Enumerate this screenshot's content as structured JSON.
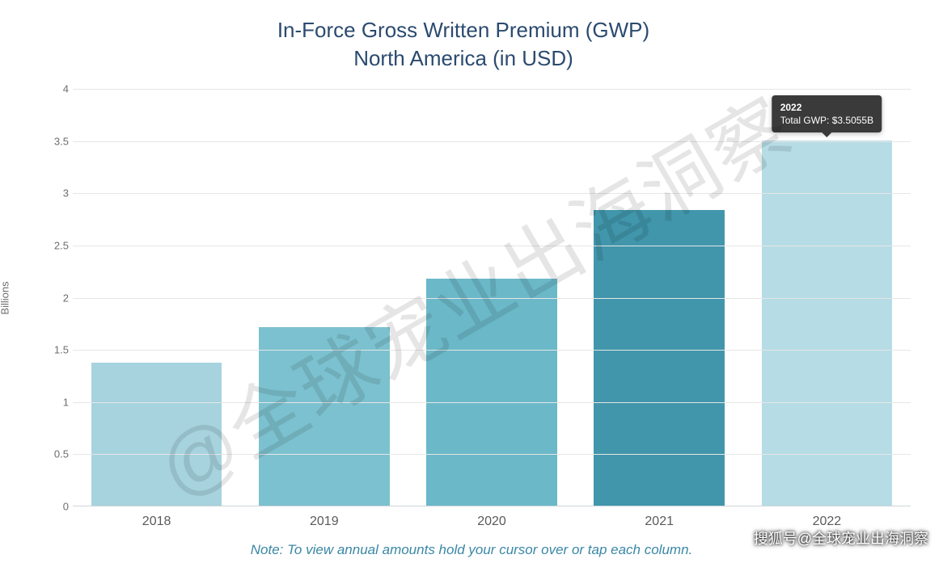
{
  "chart": {
    "type": "bar",
    "title_line1": "In-Force Gross Written Premium (GWP)",
    "title_line2": "North America (in USD)",
    "title_color": "#2b4a6f",
    "title_fontsize": 26,
    "y_axis_title": "Billions",
    "y_axis_title_color": "#6d6d6d",
    "ylim_min": 0,
    "ylim_max": 4,
    "ytick_step": 0.5,
    "yticks": [
      "0",
      "0.5",
      "1",
      "1.5",
      "2",
      "2.5",
      "3",
      "3.5",
      "4"
    ],
    "gridline_color": "#e6e6e6",
    "axis_line_color": "#cfd5da",
    "background_color": "#ffffff",
    "label_color": "#5a5a5a",
    "label_fontsize": 16,
    "bar_width_ratio": 0.78,
    "categories": [
      "2018",
      "2019",
      "2020",
      "2021",
      "2022"
    ],
    "values": [
      1.38,
      1.72,
      2.18,
      2.84,
      3.5055
    ],
    "bar_colors": [
      "#a6d3de",
      "#7cc1cf",
      "#6bb8c8",
      "#4196ab",
      "#b6dce5"
    ],
    "highlighted_index": 4,
    "footnote": "Note: To view annual amounts hold your cursor over or tap each column.",
    "footnote_color": "#3a87a6",
    "footnote_fontsize": 17
  },
  "tooltip": {
    "visible": true,
    "bar_index": 4,
    "year": "2022",
    "line2": "Total GWP: $3.5055B",
    "background_color": "#3a3a3a",
    "text_color": "#ffffff",
    "fontsize": 12
  },
  "watermark": {
    "text": "@全球宠业出海洞察",
    "color_rgba": "rgba(0,0,0,0.10)",
    "rotation_deg": -30,
    "fontsize_main": 96
  },
  "attribution": {
    "text": "搜狐号@全球宠业出海洞察",
    "color": "#ffffff",
    "fontsize": 18
  }
}
